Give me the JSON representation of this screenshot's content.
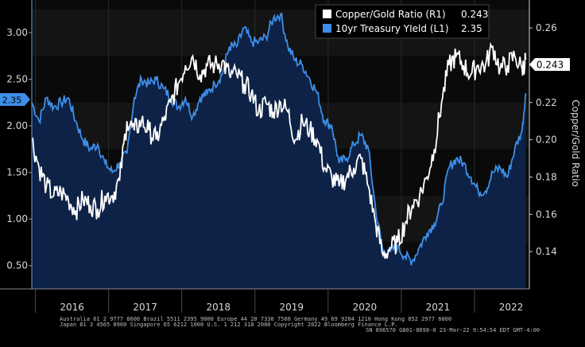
{
  "chart_data": {
    "type": "line",
    "legend": {
      "placement": "top-right",
      "entries": [
        {
          "key": "copper_gold",
          "label": "Copper/Gold Ratio (R1)",
          "last": "0.243",
          "color": "#ffffff"
        },
        {
          "key": "treasury",
          "label": "10yr Treasury YIeld (L1)",
          "last": "2.35",
          "color": "#3d8ee8"
        }
      ]
    },
    "left_axis": {
      "range": [
        0.25,
        3.35
      ],
      "ticks": [
        "3.00",
        "2.50",
        "2.00",
        "1.50",
        "1.00",
        "0.50"
      ],
      "tick_values": [
        3.0,
        2.5,
        2.0,
        1.5,
        1.0,
        0.5
      ],
      "last_label": "2.35"
    },
    "right_axis": {
      "label": "Copper/Gold Ratio",
      "range": [
        0.12,
        0.275
      ],
      "ticks": [
        "0.26",
        "0.24",
        "0.22",
        "0.20",
        "0.18",
        "0.16",
        "0.14"
      ],
      "tick_values": [
        0.26,
        0.24,
        0.22,
        0.2,
        0.18,
        0.16,
        0.14
      ],
      "last_label": "0.243"
    },
    "x_axis": {
      "range": [
        2015.45,
        2022.25
      ],
      "year_labels": [
        "2016",
        "2017",
        "2018",
        "2019",
        "2020",
        "2021",
        "2022"
      ],
      "year_positions": [
        2016.0,
        2017.0,
        2018.0,
        2019.0,
        2020.0,
        2021.0,
        2022.0
      ]
    },
    "grid": true,
    "series": [
      {
        "name": "10yr Treasury YIeld (L1)",
        "axis": "left",
        "color": "#3d8ee8",
        "x": [
          2015.45,
          2015.55,
          2015.65,
          2015.75,
          2015.85,
          2015.95,
          2016.05,
          2016.15,
          2016.25,
          2016.35,
          2016.45,
          2016.55,
          2016.65,
          2016.75,
          2016.85,
          2016.95,
          2017.05,
          2017.15,
          2017.25,
          2017.35,
          2017.45,
          2017.55,
          2017.65,
          2017.75,
          2017.85,
          2017.95,
          2018.05,
          2018.15,
          2018.25,
          2018.35,
          2018.45,
          2018.55,
          2018.65,
          2018.75,
          2018.85,
          2018.95,
          2019.05,
          2019.15,
          2019.25,
          2019.35,
          2019.45,
          2019.55,
          2019.65,
          2019.75,
          2019.85,
          2019.95,
          2020.05,
          2020.15,
          2020.25,
          2020.35,
          2020.45,
          2020.55,
          2020.65,
          2020.75,
          2020.85,
          2020.95,
          2021.05,
          2021.15,
          2021.25,
          2021.35,
          2021.45,
          2021.55,
          2021.65,
          2021.75,
          2021.85,
          2021.95,
          2022.05,
          2022.15,
          2022.2
        ],
        "y": [
          2.25,
          2.05,
          2.3,
          2.2,
          2.25,
          2.3,
          2.05,
          1.85,
          1.75,
          1.8,
          1.6,
          1.5,
          1.6,
          1.7,
          2.3,
          2.5,
          2.45,
          2.5,
          2.4,
          2.3,
          2.2,
          2.3,
          2.1,
          2.3,
          2.35,
          2.45,
          2.55,
          2.85,
          2.85,
          3.05,
          2.9,
          2.9,
          2.95,
          3.15,
          3.2,
          2.85,
          2.7,
          2.65,
          2.5,
          2.35,
          2.05,
          2.0,
          1.6,
          1.65,
          1.8,
          1.9,
          1.75,
          1.1,
          0.65,
          0.65,
          0.7,
          0.6,
          0.55,
          0.7,
          0.85,
          0.95,
          1.15,
          1.55,
          1.65,
          1.6,
          1.45,
          1.3,
          1.3,
          1.5,
          1.55,
          1.45,
          1.75,
          1.95,
          2.35
        ]
      },
      {
        "name": "Copper/Gold Ratio (R1)",
        "axis": "right",
        "color": "#ffffff",
        "x": [
          2015.45,
          2015.55,
          2015.65,
          2015.75,
          2015.85,
          2015.95,
          2016.05,
          2016.15,
          2016.25,
          2016.35,
          2016.45,
          2016.55,
          2016.65,
          2016.75,
          2016.85,
          2016.95,
          2017.05,
          2017.15,
          2017.25,
          2017.35,
          2017.45,
          2017.55,
          2017.65,
          2017.75,
          2017.85,
          2017.95,
          2018.05,
          2018.15,
          2018.25,
          2018.35,
          2018.45,
          2018.55,
          2018.65,
          2018.75,
          2018.85,
          2018.95,
          2019.05,
          2019.15,
          2019.25,
          2019.35,
          2019.45,
          2019.55,
          2019.65,
          2019.75,
          2019.85,
          2019.95,
          2020.05,
          2020.15,
          2020.25,
          2020.35,
          2020.45,
          2020.55,
          2020.65,
          2020.75,
          2020.85,
          2020.95,
          2021.05,
          2021.15,
          2021.25,
          2021.35,
          2021.45,
          2021.55,
          2021.65,
          2021.75,
          2021.85,
          2021.95,
          2022.05,
          2022.15,
          2022.2
        ],
        "y": [
          0.2,
          0.185,
          0.175,
          0.17,
          0.172,
          0.168,
          0.162,
          0.168,
          0.165,
          0.163,
          0.17,
          0.17,
          0.178,
          0.21,
          0.205,
          0.21,
          0.205,
          0.2,
          0.21,
          0.22,
          0.23,
          0.24,
          0.245,
          0.235,
          0.24,
          0.24,
          0.242,
          0.235,
          0.235,
          0.23,
          0.225,
          0.215,
          0.22,
          0.215,
          0.22,
          0.215,
          0.2,
          0.21,
          0.205,
          0.2,
          0.185,
          0.18,
          0.175,
          0.18,
          0.185,
          0.19,
          0.175,
          0.155,
          0.138,
          0.142,
          0.145,
          0.155,
          0.165,
          0.17,
          0.18,
          0.195,
          0.22,
          0.24,
          0.245,
          0.24,
          0.235,
          0.24,
          0.24,
          0.25,
          0.238,
          0.24,
          0.245,
          0.238,
          0.243
        ]
      }
    ]
  },
  "footer": {
    "line1": "Australia 61 2 9777 8600  Brazil 5511 2395 9000  Europe 44 20 7330 7500  Germany 49 69 9204 1210  Hong Kong 852 2977 6000",
    "line2": "Japan 81 3 4565 8900        Singapore 65 6212 1000        U.S. 1 212 318 2000         Copyright 2022 Bloomberg Finance L.P.",
    "line3": "SN 896570 G801-8698-0 23-Mar-22  9:54:54 EDT  GMT-4:00"
  }
}
